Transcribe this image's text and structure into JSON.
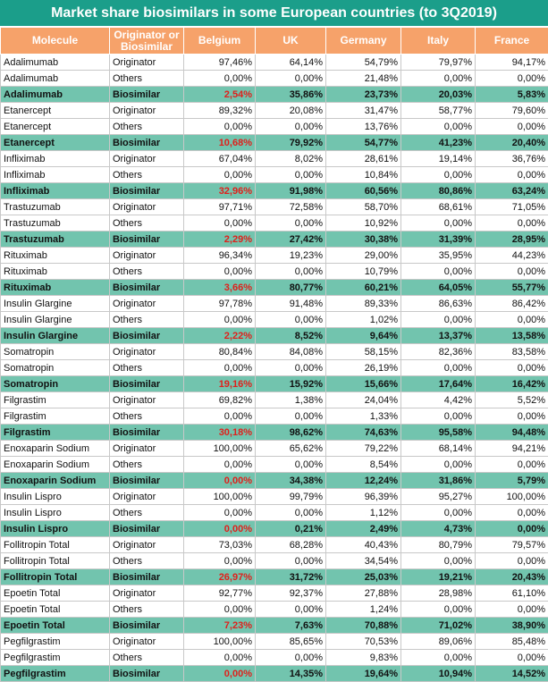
{
  "title": "Market share biosimilars in some European countries (to 3Q2019)",
  "headers": [
    "Molecule",
    "Originator or Biosimilar",
    "Belgium",
    "UK",
    "Germany",
    "Italy",
    "France"
  ],
  "rows": [
    {
      "molecule": "Adalimumab",
      "type": "Originator",
      "values": [
        "97,46%",
        "64,14%",
        "54,79%",
        "79,97%",
        "94,17%"
      ]
    },
    {
      "molecule": "Adalimumab",
      "type": "Others",
      "values": [
        "0,00%",
        "0,00%",
        "21,48%",
        "0,00%",
        "0,00%"
      ]
    },
    {
      "molecule": "Adalimumab",
      "type": "Biosimilar",
      "values": [
        "2,54%",
        "35,86%",
        "23,73%",
        "20,03%",
        "5,83%"
      ]
    },
    {
      "molecule": "Etanercept",
      "type": "Originator",
      "values": [
        "89,32%",
        "20,08%",
        "31,47%",
        "58,77%",
        "79,60%"
      ]
    },
    {
      "molecule": "Etanercept",
      "type": "Others",
      "values": [
        "0,00%",
        "0,00%",
        "13,76%",
        "0,00%",
        "0,00%"
      ]
    },
    {
      "molecule": "Etanercept",
      "type": "Biosimilar",
      "values": [
        "10,68%",
        "79,92%",
        "54,77%",
        "41,23%",
        "20,40%"
      ]
    },
    {
      "molecule": "Infliximab",
      "type": "Originator",
      "values": [
        "67,04%",
        "8,02%",
        "28,61%",
        "19,14%",
        "36,76%"
      ]
    },
    {
      "molecule": "Infliximab",
      "type": "Others",
      "values": [
        "0,00%",
        "0,00%",
        "10,84%",
        "0,00%",
        "0,00%"
      ]
    },
    {
      "molecule": "Infliximab",
      "type": "Biosimilar",
      "values": [
        "32,96%",
        "91,98%",
        "60,56%",
        "80,86%",
        "63,24%"
      ]
    },
    {
      "molecule": "Trastuzumab",
      "type": "Originator",
      "values": [
        "97,71%",
        "72,58%",
        "58,70%",
        "68,61%",
        "71,05%"
      ]
    },
    {
      "molecule": "Trastuzumab",
      "type": "Others",
      "values": [
        "0,00%",
        "0,00%",
        "10,92%",
        "0,00%",
        "0,00%"
      ]
    },
    {
      "molecule": "Trastuzumab",
      "type": "Biosimilar",
      "values": [
        "2,29%",
        "27,42%",
        "30,38%",
        "31,39%",
        "28,95%"
      ]
    },
    {
      "molecule": "Rituximab",
      "type": "Originator",
      "values": [
        "96,34%",
        "19,23%",
        "29,00%",
        "35,95%",
        "44,23%"
      ]
    },
    {
      "molecule": "Rituximab",
      "type": "Others",
      "values": [
        "0,00%",
        "0,00%",
        "10,79%",
        "0,00%",
        "0,00%"
      ]
    },
    {
      "molecule": "Rituximab",
      "type": "Biosimilar",
      "values": [
        "3,66%",
        "80,77%",
        "60,21%",
        "64,05%",
        "55,77%"
      ]
    },
    {
      "molecule": "Insulin Glargine",
      "type": "Originator",
      "values": [
        "97,78%",
        "91,48%",
        "89,33%",
        "86,63%",
        "86,42%"
      ]
    },
    {
      "molecule": "Insulin Glargine",
      "type": "Others",
      "values": [
        "0,00%",
        "0,00%",
        "1,02%",
        "0,00%",
        "0,00%"
      ]
    },
    {
      "molecule": "Insulin Glargine",
      "type": "Biosimilar",
      "values": [
        "2,22%",
        "8,52%",
        "9,64%",
        "13,37%",
        "13,58%"
      ]
    },
    {
      "molecule": "Somatropin",
      "type": "Originator",
      "values": [
        "80,84%",
        "84,08%",
        "58,15%",
        "82,36%",
        "83,58%"
      ]
    },
    {
      "molecule": "Somatropin",
      "type": "Others",
      "values": [
        "0,00%",
        "0,00%",
        "26,19%",
        "0,00%",
        "0,00%"
      ]
    },
    {
      "molecule": "Somatropin",
      "type": "Biosimilar",
      "values": [
        "19,16%",
        "15,92%",
        "15,66%",
        "17,64%",
        "16,42%"
      ]
    },
    {
      "molecule": "Filgrastim",
      "type": "Originator",
      "values": [
        "69,82%",
        "1,38%",
        "24,04%",
        "4,42%",
        "5,52%"
      ]
    },
    {
      "molecule": "Filgrastim",
      "type": "Others",
      "values": [
        "0,00%",
        "0,00%",
        "1,33%",
        "0,00%",
        "0,00%"
      ]
    },
    {
      "molecule": "Filgrastim",
      "type": "Biosimilar",
      "values": [
        "30,18%",
        "98,62%",
        "74,63%",
        "95,58%",
        "94,48%"
      ]
    },
    {
      "molecule": "Enoxaparin Sodium",
      "type": "Originator",
      "values": [
        "100,00%",
        "65,62%",
        "79,22%",
        "68,14%",
        "94,21%"
      ]
    },
    {
      "molecule": "Enoxaparin Sodium",
      "type": "Others",
      "values": [
        "0,00%",
        "0,00%",
        "8,54%",
        "0,00%",
        "0,00%"
      ]
    },
    {
      "molecule": "Enoxaparin Sodium",
      "type": "Biosimilar",
      "values": [
        "0,00%",
        "34,38%",
        "12,24%",
        "31,86%",
        "5,79%"
      ]
    },
    {
      "molecule": "Insulin Lispro",
      "type": "Originator",
      "values": [
        "100,00%",
        "99,79%",
        "96,39%",
        "95,27%",
        "100,00%"
      ]
    },
    {
      "molecule": "Insulin Lispro",
      "type": "Others",
      "values": [
        "0,00%",
        "0,00%",
        "1,12%",
        "0,00%",
        "0,00%"
      ]
    },
    {
      "molecule": "Insulin Lispro",
      "type": "Biosimilar",
      "values": [
        "0,00%",
        "0,21%",
        "2,49%",
        "4,73%",
        "0,00%"
      ]
    },
    {
      "molecule": "Follitropin Total",
      "type": "Originator",
      "values": [
        "73,03%",
        "68,28%",
        "40,43%",
        "80,79%",
        "79,57%"
      ]
    },
    {
      "molecule": "Follitropin Total",
      "type": "Others",
      "values": [
        "0,00%",
        "0,00%",
        "34,54%",
        "0,00%",
        "0,00%"
      ]
    },
    {
      "molecule": "Follitropin Total",
      "type": "Biosimilar",
      "values": [
        "26,97%",
        "31,72%",
        "25,03%",
        "19,21%",
        "20,43%"
      ]
    },
    {
      "molecule": "Epoetin Total",
      "type": "Originator",
      "values": [
        "92,77%",
        "92,37%",
        "27,88%",
        "28,98%",
        "61,10%"
      ]
    },
    {
      "molecule": "Epoetin Total",
      "type": "Others",
      "values": [
        "0,00%",
        "0,00%",
        "1,24%",
        "0,00%",
        "0,00%"
      ]
    },
    {
      "molecule": "Epoetin Total",
      "type": "Biosimilar",
      "values": [
        "7,23%",
        "7,63%",
        "70,88%",
        "71,02%",
        "38,90%"
      ]
    },
    {
      "molecule": "Pegfilgrastim",
      "type": "Originator",
      "values": [
        "100,00%",
        "85,65%",
        "70,53%",
        "89,06%",
        "85,48%"
      ]
    },
    {
      "molecule": "Pegfilgrastim",
      "type": "Others",
      "values": [
        "0,00%",
        "0,00%",
        "9,83%",
        "0,00%",
        "0,00%"
      ]
    },
    {
      "molecule": "Pegfilgrastim",
      "type": "Biosimilar",
      "values": [
        "0,00%",
        "14,35%",
        "19,64%",
        "10,94%",
        "14,52%"
      ]
    }
  ],
  "colors": {
    "title_bg": "#1b9e8a",
    "header_bg": "#f6a26a",
    "biosimilar_row_bg": "#72c4ae",
    "belgium_biosimilar_text": "#e0201b"
  }
}
